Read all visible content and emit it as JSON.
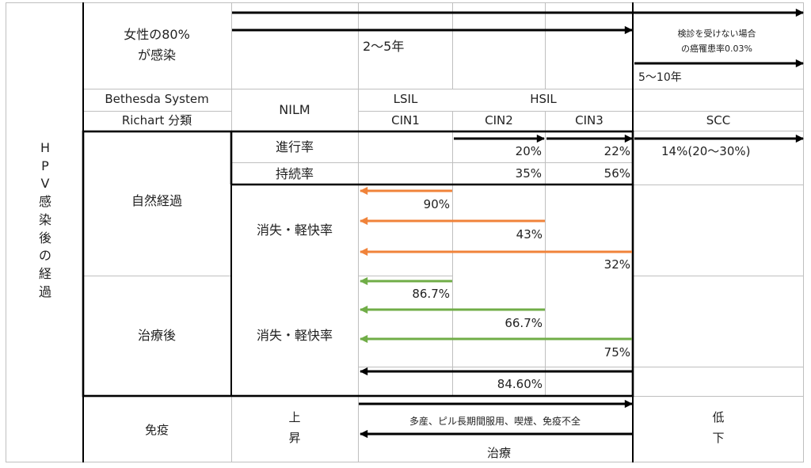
{
  "left_title": [
    "H",
    "P",
    "V",
    "感",
    "染",
    "後",
    "の",
    "経",
    "過"
  ],
  "header": {
    "infection_line1": "女性の80%",
    "infection_line2": "が感染",
    "period_short": "2〜5年",
    "period_long": "5〜10年",
    "no_screening_line1": "検診を受けない場合",
    "no_screening_line2": "の癌罹患率0.03%"
  },
  "classification": {
    "bethesda_label": "Bethesda System",
    "richart_label": "Richart 分類",
    "nilm": "NILM",
    "lsil": "LSIL",
    "hsil": "HSIL",
    "cin1": "CIN1",
    "cin2": "CIN2",
    "cin3": "CIN3",
    "scc": "SCC"
  },
  "natural_course": {
    "label": "自然経過",
    "progression_label": "進行率",
    "persistence_label": "持続率",
    "regression_label": "消失・軽快率",
    "progression_cin2": "20%",
    "progression_cin3": "22%",
    "progression_scc": "14%(20〜30%)",
    "persistence_cin2": "35%",
    "persistence_cin3": "56%",
    "regression_cin1": "90%",
    "regression_cin2": "43%",
    "regression_cin3": "32%"
  },
  "after_treatment": {
    "label": "治療後",
    "regression_label": "消失・軽快率",
    "regression_cin1": "86.7%",
    "regression_cin2": "66.7%",
    "regression_cin3": "75%",
    "overall": "84.60%"
  },
  "immunity": {
    "label": "免疫",
    "rise_1": "上",
    "rise_2": "昇",
    "factors": "多産、ピル長期間服用、喫煙、免疫不全",
    "treatment": "治療",
    "fall_1": "低",
    "fall_2": "下"
  },
  "colors": {
    "natural_arrow": "#f0833a",
    "treatment_arrow": "#70ad47",
    "black_arrow": "#000000",
    "grid": "#bfbfbf"
  }
}
